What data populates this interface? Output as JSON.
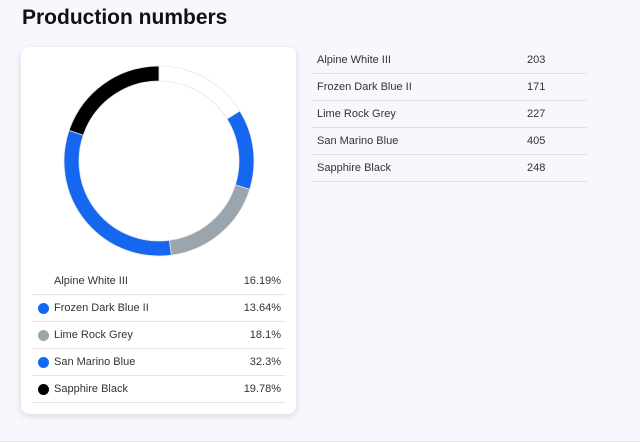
{
  "page": {
    "title": "Production numbers"
  },
  "chart_data": {
    "type": "pie",
    "categories": [
      "Alpine White III",
      "Frozen Dark Blue II",
      "Lime Rock Grey",
      "San Marino Blue",
      "Sapphire Black"
    ],
    "values": [
      16.19,
      13.64,
      18.1,
      32.3,
      19.78
    ],
    "value_labels": [
      "16.19%",
      "13.64%",
      "18.1%",
      "32.3%",
      "19.78%"
    ],
    "colors": [
      "#ffffff",
      "#1567f0",
      "#9aa5ad",
      "#1567f0",
      "#000000"
    ]
  },
  "table": {
    "rows": [
      {
        "name": "Alpine White III",
        "value": "203"
      },
      {
        "name": "Frozen Dark Blue II",
        "value": "171"
      },
      {
        "name": "Lime Rock Grey",
        "value": "227"
      },
      {
        "name": "San Marino Blue",
        "value": "405"
      },
      {
        "name": "Sapphire Black",
        "value": "248"
      }
    ]
  }
}
